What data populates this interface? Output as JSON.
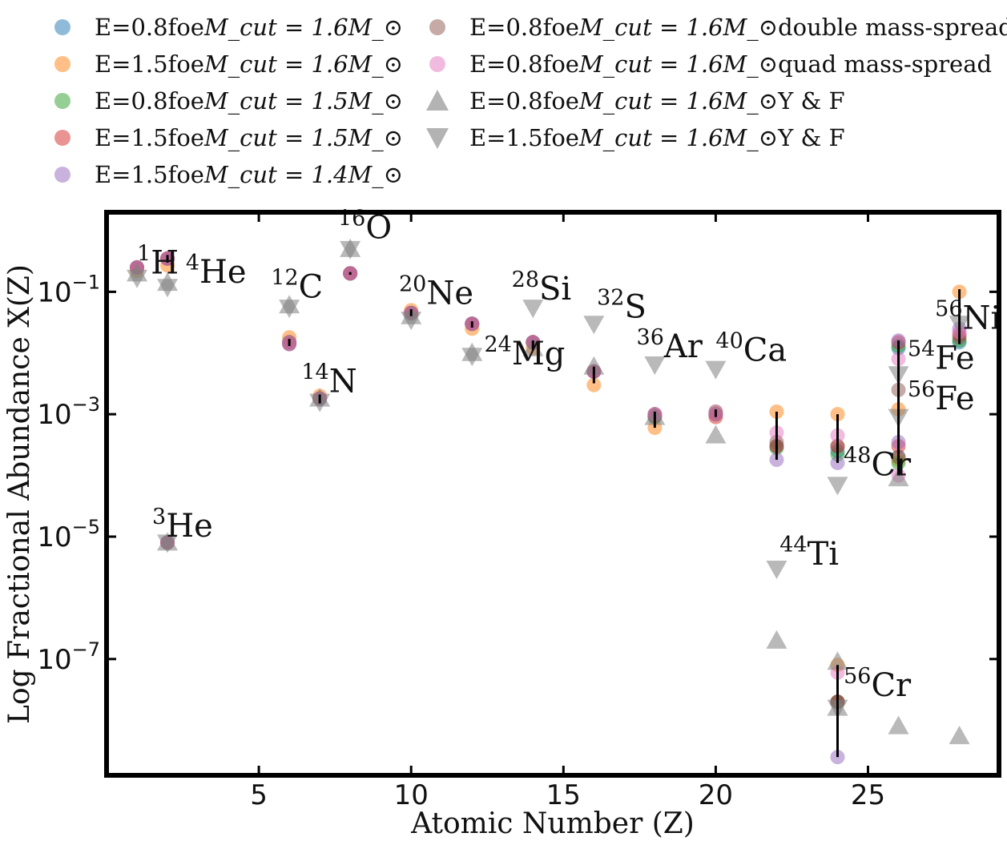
{
  "chart_data": {
    "type": "scatter",
    "title": "",
    "xlabel": "Atomic Number (Z)",
    "ylabel": "Log Fractional Abundance X(Z)",
    "xlim": [
      0,
      29.3
    ],
    "ylim_log10": [
      -8.9,
      0.3
    ],
    "y_scale": "log",
    "x_ticks": [
      5,
      10,
      15,
      20,
      25
    ],
    "x_tick_labels": [
      "5",
      "10",
      "15",
      "20",
      "25"
    ],
    "y_ticks_log10": [
      -1,
      -3,
      -5,
      -7
    ],
    "grid": false,
    "legend_placement": "top (outside plot, two columns)",
    "legend": [
      {
        "key": "e08_m16",
        "pre": "E=0.8foe ",
        "math": "M_cut = 1.6M_⊙",
        "post": "",
        "marker": "circle",
        "color": "#1f77b4"
      },
      {
        "key": "e15_m16",
        "pre": "E=1.5foe ",
        "math": "M_cut = 1.6M_⊙",
        "post": "",
        "marker": "circle",
        "color": "#ff7f0e"
      },
      {
        "key": "e08_m15",
        "pre": "E=0.8foe ",
        "math": "M_cut = 1.5M_⊙",
        "post": "",
        "marker": "circle",
        "color": "#2ca02c"
      },
      {
        "key": "e15_m15",
        "pre": "E=1.5foe ",
        "math": "M_cut = 1.5M_⊙",
        "post": "",
        "marker": "circle",
        "color": "#d62728"
      },
      {
        "key": "e15_m14",
        "pre": "E=1.5foe ",
        "math": "M_cut = 1.4M_⊙",
        "post": "",
        "marker": "circle",
        "color": "#9467bd"
      },
      {
        "key": "double",
        "pre": "E=0.8foe ",
        "math": "M_cut = 1.6M_⊙",
        "post": " double mass-spread",
        "marker": "circle",
        "color": "#8c564b"
      },
      {
        "key": "quad",
        "pre": "E=0.8foe ",
        "math": "M_cut = 1.6M_⊙",
        "post": " quad mass-spread",
        "marker": "circle",
        "color": "#e377c2"
      },
      {
        "key": "yf08",
        "pre": "E=0.8foe ",
        "math": "M_cut = 1.6M_⊙",
        "post": " Y & F",
        "marker": "triangle-up",
        "color": "#808080"
      },
      {
        "key": "yf15",
        "pre": "E=1.5foe ",
        "math": "M_cut = 1.6M_⊙",
        "post": " Y & F",
        "marker": "triangle-down",
        "color": "#808080"
      }
    ],
    "series": [
      {
        "name": "E=0.8foe M_cut=1.6M_sun",
        "marker": "circle",
        "color": "#1f77b4",
        "points": [
          [
            1,
            0.25
          ],
          [
            2,
            8e-06
          ],
          [
            2,
            0.35
          ],
          [
            6,
            0.015
          ],
          [
            7,
            0.0018
          ],
          [
            8,
            0.2
          ],
          [
            10,
            0.045
          ],
          [
            12,
            0.03
          ],
          [
            14,
            0.015
          ],
          [
            16,
            0.005
          ],
          [
            18,
            0.0009
          ],
          [
            20,
            0.001
          ],
          [
            22,
            0.0003
          ],
          [
            24,
            0.00025
          ],
          [
            24,
            2e-08
          ],
          [
            26,
            0.0002
          ],
          [
            26,
            0.012
          ],
          [
            28,
            0.015
          ]
        ]
      },
      {
        "name": "E=1.5foe M_cut=1.6M_sun",
        "marker": "circle",
        "color": "#ff7f0e",
        "points": [
          [
            1,
            0.22
          ],
          [
            2,
            8e-06
          ],
          [
            2,
            0.27
          ],
          [
            6,
            0.018
          ],
          [
            7,
            0.002
          ],
          [
            8,
            0.2
          ],
          [
            10,
            0.05
          ],
          [
            12,
            0.025
          ],
          [
            14,
            0.012
          ],
          [
            16,
            0.003
          ],
          [
            18,
            0.0006
          ],
          [
            20,
            0.0011
          ],
          [
            22,
            0.0011
          ],
          [
            24,
            0.001
          ],
          [
            24,
            8e-08
          ],
          [
            26,
            0.0012
          ],
          [
            26,
            0.00018
          ],
          [
            28,
            0.1
          ]
        ]
      },
      {
        "name": "E=0.8foe M_cut=1.5M_sun",
        "marker": "circle",
        "color": "#2ca02c",
        "points": [
          [
            1,
            0.25
          ],
          [
            2,
            8e-06
          ],
          [
            2,
            0.35
          ],
          [
            6,
            0.015
          ],
          [
            7,
            0.0018
          ],
          [
            8,
            0.2
          ],
          [
            10,
            0.045
          ],
          [
            12,
            0.03
          ],
          [
            14,
            0.015
          ],
          [
            16,
            0.005
          ],
          [
            18,
            0.0009
          ],
          [
            20,
            0.001
          ],
          [
            22,
            0.00028
          ],
          [
            24,
            0.00022
          ],
          [
            24,
            2e-08
          ],
          [
            26,
            0.00016
          ],
          [
            26,
            0.013
          ],
          [
            28,
            0.016
          ]
        ]
      },
      {
        "name": "E=1.5foe M_cut=1.5M_sun",
        "marker": "circle",
        "color": "#d62728",
        "points": [
          [
            1,
            0.25
          ],
          [
            2,
            8e-06
          ],
          [
            2,
            0.35
          ],
          [
            6,
            0.014
          ],
          [
            7,
            0.0018
          ],
          [
            8,
            0.2
          ],
          [
            10,
            0.045
          ],
          [
            12,
            0.03
          ],
          [
            14,
            0.015
          ],
          [
            16,
            0.005
          ],
          [
            18,
            0.00095
          ],
          [
            20,
            0.0009
          ],
          [
            22,
            0.0003
          ],
          [
            24,
            0.0003
          ],
          [
            24,
            2e-08
          ],
          [
            26,
            0.0003
          ],
          [
            26,
            0.015
          ],
          [
            28,
            0.02
          ]
        ]
      },
      {
        "name": "E=1.5foe M_cut=1.4M_sun",
        "marker": "circle",
        "color": "#9467bd",
        "points": [
          [
            1,
            0.25
          ],
          [
            2,
            8e-06
          ],
          [
            2,
            0.35
          ],
          [
            6,
            0.014
          ],
          [
            7,
            0.0018
          ],
          [
            8,
            0.2
          ],
          [
            10,
            0.045
          ],
          [
            12,
            0.03
          ],
          [
            14,
            0.015
          ],
          [
            16,
            0.005
          ],
          [
            18,
            0.001
          ],
          [
            20,
            0.0011
          ],
          [
            22,
            0.00018
          ],
          [
            24,
            0.00016
          ],
          [
            24,
            2.5e-09
          ],
          [
            26,
            0.00035
          ],
          [
            26,
            0.016
          ],
          [
            28,
            0.025
          ]
        ]
      },
      {
        "name": "E=0.8foe M_cut=1.6M_sun double mass-spread",
        "marker": "circle",
        "color": "#8c564b",
        "points": [
          [
            1,
            0.25
          ],
          [
            2,
            8e-06
          ],
          [
            2,
            0.35
          ],
          [
            6,
            0.015
          ],
          [
            7,
            0.0018
          ],
          [
            8,
            0.2
          ],
          [
            10,
            0.045
          ],
          [
            12,
            0.03
          ],
          [
            14,
            0.015
          ],
          [
            16,
            0.005
          ],
          [
            18,
            0.001
          ],
          [
            20,
            0.001
          ],
          [
            22,
            0.00035
          ],
          [
            24,
            0.0003
          ],
          [
            24,
            2e-08
          ],
          [
            26,
            0.0002
          ],
          [
            26,
            0.0025
          ],
          [
            28,
            0.018
          ]
        ]
      },
      {
        "name": "E=0.8foe M_cut=1.6M_sun quad mass-spread",
        "marker": "circle",
        "color": "#e377c2",
        "points": [
          [
            1,
            0.25
          ],
          [
            2,
            8e-06
          ],
          [
            2,
            0.35
          ],
          [
            6,
            0.015
          ],
          [
            7,
            0.0018
          ],
          [
            8,
            0.2
          ],
          [
            10,
            0.045
          ],
          [
            12,
            0.03
          ],
          [
            14,
            0.015
          ],
          [
            16,
            0.005
          ],
          [
            18,
            0.001
          ],
          [
            20,
            0.001
          ],
          [
            22,
            0.0005
          ],
          [
            24,
            0.00045
          ],
          [
            24,
            6e-08
          ],
          [
            26,
            0.0001
          ],
          [
            26,
            0.008
          ],
          [
            28,
            0.022
          ]
        ]
      },
      {
        "name": "E=0.8foe M_cut=1.6M_sun Y & F",
        "marker": "triangle-up",
        "color": "#808080",
        "points": [
          [
            1,
            0.2
          ],
          [
            2,
            8e-06
          ],
          [
            2,
            0.14
          ],
          [
            6,
            0.06
          ],
          [
            7,
            0.0018
          ],
          [
            8,
            0.5
          ],
          [
            10,
            0.04
          ],
          [
            12,
            0.01
          ],
          [
            14,
            0.012
          ],
          [
            16,
            0.006
          ],
          [
            18,
            0.0009
          ],
          [
            20,
            0.00045
          ],
          [
            22,
            2e-07
          ],
          [
            24,
            9e-08
          ],
          [
            24,
            1.6e-08
          ],
          [
            26,
            8e-09
          ],
          [
            26,
            9e-05
          ],
          [
            28,
            5.5e-09
          ]
        ]
      },
      {
        "name": "E=1.5foe M_cut=1.6M_sun Y & F",
        "marker": "triangle-down",
        "color": "#808080",
        "points": [
          [
            1,
            0.17
          ],
          [
            2,
            8e-06
          ],
          [
            2,
            0.12
          ],
          [
            6,
            0.055
          ],
          [
            7,
            0.0016
          ],
          [
            8,
            0.5
          ],
          [
            10,
            0.035
          ],
          [
            12,
            0.009
          ],
          [
            14,
            0.055
          ],
          [
            16,
            0.03
          ],
          [
            18,
            0.0065
          ],
          [
            20,
            0.0055
          ],
          [
            22,
            3e-06
          ],
          [
            24,
            7e-05
          ],
          [
            24,
            1.6e-08
          ],
          [
            26,
            0.0045
          ],
          [
            26,
            0.0009
          ],
          [
            28,
            0.03
          ]
        ]
      }
    ],
    "error_bars": [
      {
        "x": 2,
        "y_low": 0.3,
        "y_high": 0.4
      },
      {
        "x": 6,
        "y_low": 0.013,
        "y_high": 0.017
      },
      {
        "x": 7,
        "y_low": 0.0015,
        "y_high": 0.0021
      },
      {
        "x": 8,
        "y_low": 0.19,
        "y_high": 0.21
      },
      {
        "x": 10,
        "y_low": 0.04,
        "y_high": 0.052
      },
      {
        "x": 12,
        "y_low": 0.026,
        "y_high": 0.033
      },
      {
        "x": 14,
        "y_low": 0.011,
        "y_high": 0.016
      },
      {
        "x": 16,
        "y_low": 0.0032,
        "y_high": 0.006
      },
      {
        "x": 18,
        "y_low": 0.0006,
        "y_high": 0.0011
      },
      {
        "x": 20,
        "y_low": 0.0009,
        "y_high": 0.0012
      },
      {
        "x": 22,
        "y_low": 0.00018,
        "y_high": 0.0011
      },
      {
        "x": 24,
        "y_low": 0.00016,
        "y_high": 0.001
      },
      {
        "x": 24,
        "y_low": 2.5e-09,
        "y_high": 8e-08
      },
      {
        "x": 26,
        "y_low": 0.0001,
        "y_high": 0.016
      },
      {
        "x": 28,
        "y_low": 0.014,
        "y_high": 0.11
      }
    ],
    "annotations": [
      {
        "mass": "1",
        "el": "H",
        "x": 1.0,
        "y": 0.2
      },
      {
        "mass": "4",
        "el": "He",
        "x": 2.6,
        "y": 0.14
      },
      {
        "mass": "3",
        "el": "He",
        "x": 1.5,
        "y": 1e-05
      },
      {
        "mass": "16",
        "el": "O",
        "x": 7.6,
        "y": 0.75
      },
      {
        "mass": "12",
        "el": "C",
        "x": 5.4,
        "y": 0.08
      },
      {
        "mass": "14",
        "el": "N",
        "x": 6.4,
        "y": 0.0023
      },
      {
        "mass": "20",
        "el": "Ne",
        "x": 9.6,
        "y": 0.063
      },
      {
        "mass": "24",
        "el": "Mg",
        "x": 12.4,
        "y": 0.0065
      },
      {
        "mass": "28",
        "el": "Si",
        "x": 13.3,
        "y": 0.075
      },
      {
        "mass": "32",
        "el": "S",
        "x": 16.1,
        "y": 0.038
      },
      {
        "mass": "36",
        "el": "Ar",
        "x": 17.4,
        "y": 0.0085
      },
      {
        "mass": "40",
        "el": "Ca",
        "x": 20.0,
        "y": 0.0075
      },
      {
        "mass": "44",
        "el": "Ti",
        "x": 22.1,
        "y": 3.5e-06
      },
      {
        "mass": "48",
        "el": "Cr",
        "x": 24.2,
        "y": 0.0001
      },
      {
        "mass": "54",
        "el": "Fe",
        "x": 26.3,
        "y": 0.0055
      },
      {
        "mass": "56",
        "el": "Fe",
        "x": 26.3,
        "y": 0.0012
      },
      {
        "mass": "56",
        "el": "Ni",
        "x": 27.2,
        "y": 0.025
      },
      {
        "mass": "56",
        "el": "Cr",
        "x": 24.2,
        "y": 2.5e-08
      }
    ]
  }
}
